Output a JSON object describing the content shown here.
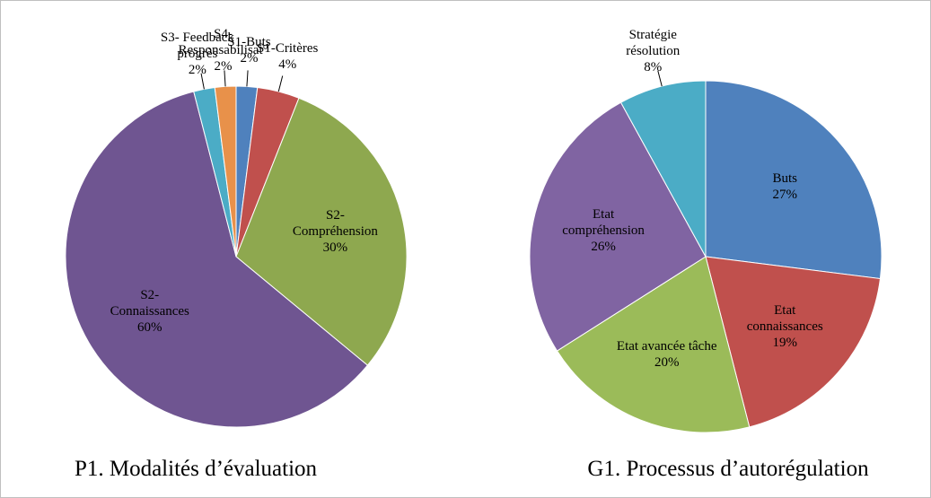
{
  "chart_data": [
    {
      "type": "pie",
      "title": "P1. Modalités d’évaluation",
      "categories": [
        "S1-Buts",
        "S1-Critères",
        "S2- Compréhension",
        "S2- Connaissances",
        "S3- Feedback progrès",
        "S4- Responsabilisat°"
      ],
      "values": [
        2,
        4,
        30,
        60,
        2,
        2
      ],
      "value_labels": [
        "2%",
        "4%",
        "30%",
        "60%",
        "2%",
        "2%"
      ],
      "colors": [
        "#4f81bd",
        "#c0504d",
        "#8ea84f",
        "#6f5591",
        "#4bacc6",
        "#e8914a"
      ]
    },
    {
      "type": "pie",
      "title": "G1. Processus d’autorégulation",
      "categories": [
        "Buts",
        "Etat connaissances",
        "Etat avancée tâche",
        "Etat compréhension",
        "Stratégie résolution"
      ],
      "values": [
        27,
        19,
        20,
        26,
        8
      ],
      "value_labels": [
        "27%",
        "19%",
        "20%",
        "26%",
        "8%"
      ],
      "colors": [
        "#4f81bd",
        "#c0504d",
        "#9bbb59",
        "#8064a2",
        "#4bacc6"
      ]
    }
  ]
}
